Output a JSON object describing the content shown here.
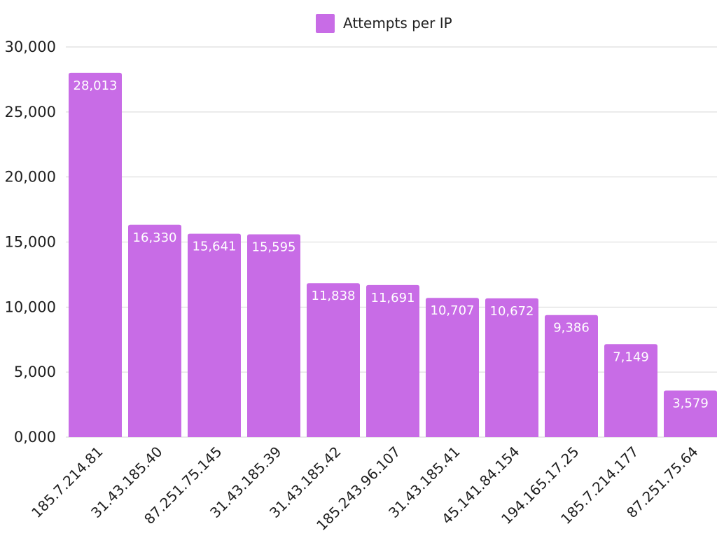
{
  "chart_data": {
    "type": "bar",
    "categories": [
      "185.7.214.81",
      "31.43.185.40",
      "87.251.75.145",
      "31.43.185.39",
      "31.43.185.42",
      "185.243.96.107",
      "31.43.185.41",
      "45.141.84.154",
      "194.165.17.25",
      "185.7.214.177",
      "87.251.75.64"
    ],
    "series": [
      {
        "name": "Attempts per IP",
        "values": [
          28013,
          16330,
          15641,
          15595,
          11838,
          11691,
          10707,
          10672,
          9386,
          7149,
          3579
        ],
        "labels": [
          "28,013",
          "16,330",
          "15,641",
          "15,595",
          "11,838",
          "11,691",
          "10,707",
          "10,672",
          "9,386",
          "7,149",
          "3,579"
        ]
      }
    ],
    "yticks": [
      "0,000",
      "5,000",
      "10,000",
      "15,000",
      "20,000",
      "25,000",
      "30,000"
    ],
    "ylim": [
      0,
      30000
    ],
    "grid": true,
    "legend_position": "top-center",
    "bar_color": "#c86ce6"
  }
}
